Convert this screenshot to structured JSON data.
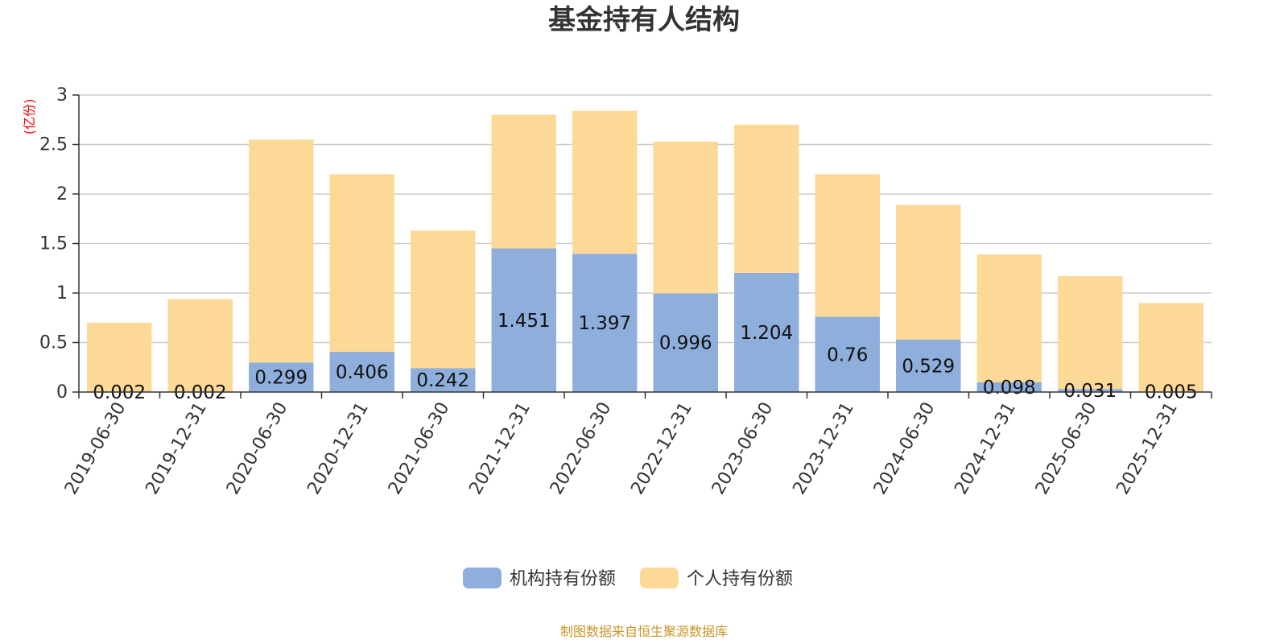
{
  "chart_data": {
    "type": "bar",
    "stacked": true,
    "title": "基金持有人结构",
    "ylabel": "(亿份)",
    "ylim": [
      0,
      3
    ],
    "yticks": [
      "0",
      "0.5",
      "1",
      "1.5",
      "2",
      "2.5",
      "3"
    ],
    "categories": [
      "2019-06-30",
      "2019-12-31",
      "2020-06-30",
      "2020-12-31",
      "2021-06-30",
      "2021-12-31",
      "2022-06-30",
      "2022-12-31",
      "2023-06-30",
      "2023-12-31",
      "2024-06-30",
      "2024-12-31",
      "2025-06-30",
      "2025-12-31"
    ],
    "series": [
      {
        "name": "机构持有份额",
        "color": "#8eaedb",
        "values": [
          0.002,
          0.002,
          0.299,
          0.406,
          0.242,
          1.451,
          1.397,
          0.996,
          1.204,
          0.76,
          0.529,
          0.098,
          0.031,
          0.005
        ],
        "labels": [
          "0.002",
          "0.002",
          "0.299",
          "0.406",
          "0.242",
          "1.451",
          "1.397",
          "0.996",
          "1.204",
          "0.76",
          "0.529",
          "0.098",
          "0.031",
          "0.005"
        ]
      },
      {
        "name": "个人持有份额",
        "color": "#fdd998",
        "values": [
          0.698,
          0.938,
          2.251,
          1.794,
          1.388,
          1.349,
          1.443,
          1.534,
          1.496,
          1.44,
          1.361,
          1.292,
          1.139,
          0.895
        ]
      }
    ],
    "grid": true,
    "legend": "bottom-center"
  },
  "footer": {
    "source": "制图数据来自恒生聚源数据库"
  }
}
